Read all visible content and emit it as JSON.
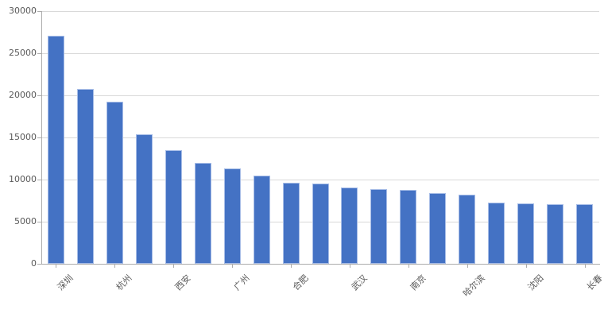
{
  "chart_data": {
    "type": "bar",
    "title": "",
    "xlabel": "",
    "ylabel": "",
    "categories": [
      "深圳",
      "",
      "杭州",
      "",
      "西安",
      "",
      "广州",
      "",
      "合肥",
      "",
      "武汉",
      "",
      "南京",
      "",
      "哈尔滨",
      "",
      "沈阳",
      "",
      "长春"
    ],
    "values": [
      27100,
      20750,
      19250,
      15400,
      13500,
      12000,
      11300,
      10500,
      9600,
      9550,
      9050,
      8900,
      8800,
      8400,
      8200,
      7300,
      7150,
      7050,
      7050
    ],
    "ylim": [
      0,
      30000
    ],
    "yticks": [
      0,
      5000,
      10000,
      15000,
      20000,
      25000,
      30000
    ],
    "ytick_labels": [
      "0",
      "5000",
      "10000",
      "15000",
      "20000",
      "25000",
      "30000"
    ],
    "x_label_interval": 2,
    "grid": true,
    "legend": false,
    "colors": {
      "bar_fill": "#4472C4",
      "bar_edge": "#A7BDE7",
      "gridline": "#D9D9D9",
      "axis_line": "#ABABAB",
      "tick_mark": "#ABABAB",
      "text": "#595959",
      "background": "#FFFFFF"
    }
  }
}
